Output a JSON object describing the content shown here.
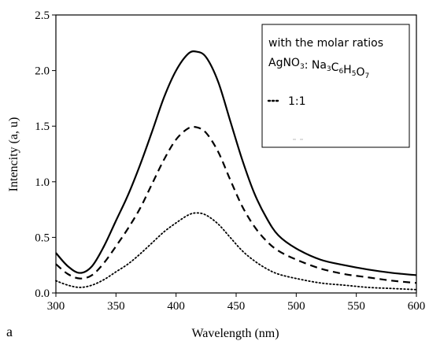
{
  "chart_data": {
    "type": "line",
    "xlabel": "Wavelength (nm)",
    "ylabel": "Intencity (a, u)",
    "panel_label": "a",
    "xlim": [
      300,
      600
    ],
    "ylim": [
      0,
      2.5
    ],
    "x_ticks": [
      300,
      350,
      400,
      450,
      500,
      550,
      600
    ],
    "x_tick_labels": [
      "300",
      "350",
      "400",
      "450",
      "500",
      "550",
      "600"
    ],
    "y_ticks": [
      0,
      0.5,
      1.0,
      1.5,
      2.0,
      2.5
    ],
    "y_tick_labels": [
      "0.0",
      "0.5",
      "1.0",
      "1.5",
      "2.0",
      "2.5"
    ],
    "grid": false,
    "legend": {
      "placement": "top-right",
      "title_line1": "with the molar ratios",
      "title_line2_parts": [
        {
          "t": "AgNO",
          "sub": false
        },
        {
          "t": "3",
          "sub": true
        },
        {
          "t": ": Na",
          "sub": false
        },
        {
          "t": "3",
          "sub": true
        },
        {
          "t": "C",
          "sub": false
        },
        {
          "t": "6",
          "sub": true
        },
        {
          "t": "H",
          "sub": false
        },
        {
          "t": "5",
          "sub": true
        },
        {
          "t": "O",
          "sub": false
        },
        {
          "t": "7",
          "sub": true
        }
      ],
      "entry_label": "1:1"
    },
    "series": [
      {
        "style": "solid",
        "color": "#000000",
        "points": [
          [
            300,
            0.36
          ],
          [
            310,
            0.24
          ],
          [
            320,
            0.18
          ],
          [
            330,
            0.24
          ],
          [
            340,
            0.42
          ],
          [
            350,
            0.65
          ],
          [
            360,
            0.88
          ],
          [
            370,
            1.15
          ],
          [
            380,
            1.45
          ],
          [
            390,
            1.76
          ],
          [
            400,
            2.0
          ],
          [
            410,
            2.15
          ],
          [
            417,
            2.17
          ],
          [
            425,
            2.12
          ],
          [
            435,
            1.9
          ],
          [
            445,
            1.55
          ],
          [
            455,
            1.2
          ],
          [
            465,
            0.9
          ],
          [
            475,
            0.68
          ],
          [
            485,
            0.52
          ],
          [
            500,
            0.4
          ],
          [
            520,
            0.3
          ],
          [
            540,
            0.25
          ],
          [
            560,
            0.21
          ],
          [
            580,
            0.18
          ],
          [
            600,
            0.16
          ]
        ]
      },
      {
        "style": "dashed",
        "color": "#000000",
        "points": [
          [
            300,
            0.26
          ],
          [
            310,
            0.17
          ],
          [
            320,
            0.13
          ],
          [
            330,
            0.16
          ],
          [
            340,
            0.27
          ],
          [
            350,
            0.42
          ],
          [
            360,
            0.58
          ],
          [
            370,
            0.76
          ],
          [
            380,
            0.98
          ],
          [
            390,
            1.2
          ],
          [
            400,
            1.38
          ],
          [
            410,
            1.48
          ],
          [
            417,
            1.49
          ],
          [
            425,
            1.44
          ],
          [
            435,
            1.27
          ],
          [
            445,
            1.02
          ],
          [
            455,
            0.78
          ],
          [
            465,
            0.6
          ],
          [
            475,
            0.47
          ],
          [
            485,
            0.38
          ],
          [
            500,
            0.3
          ],
          [
            520,
            0.22
          ],
          [
            540,
            0.17
          ],
          [
            560,
            0.14
          ],
          [
            580,
            0.11
          ],
          [
            600,
            0.09
          ]
        ]
      },
      {
        "style": "dotted",
        "color": "#000000",
        "points": [
          [
            300,
            0.11
          ],
          [
            310,
            0.07
          ],
          [
            320,
            0.05
          ],
          [
            330,
            0.07
          ],
          [
            340,
            0.12
          ],
          [
            350,
            0.19
          ],
          [
            360,
            0.26
          ],
          [
            370,
            0.35
          ],
          [
            380,
            0.45
          ],
          [
            390,
            0.55
          ],
          [
            400,
            0.63
          ],
          [
            410,
            0.7
          ],
          [
            417,
            0.72
          ],
          [
            425,
            0.7
          ],
          [
            435,
            0.62
          ],
          [
            445,
            0.5
          ],
          [
            455,
            0.38
          ],
          [
            465,
            0.29
          ],
          [
            475,
            0.22
          ],
          [
            485,
            0.17
          ],
          [
            500,
            0.13
          ],
          [
            520,
            0.09
          ],
          [
            540,
            0.07
          ],
          [
            560,
            0.05
          ],
          [
            580,
            0.04
          ],
          [
            600,
            0.03
          ]
        ]
      }
    ]
  }
}
